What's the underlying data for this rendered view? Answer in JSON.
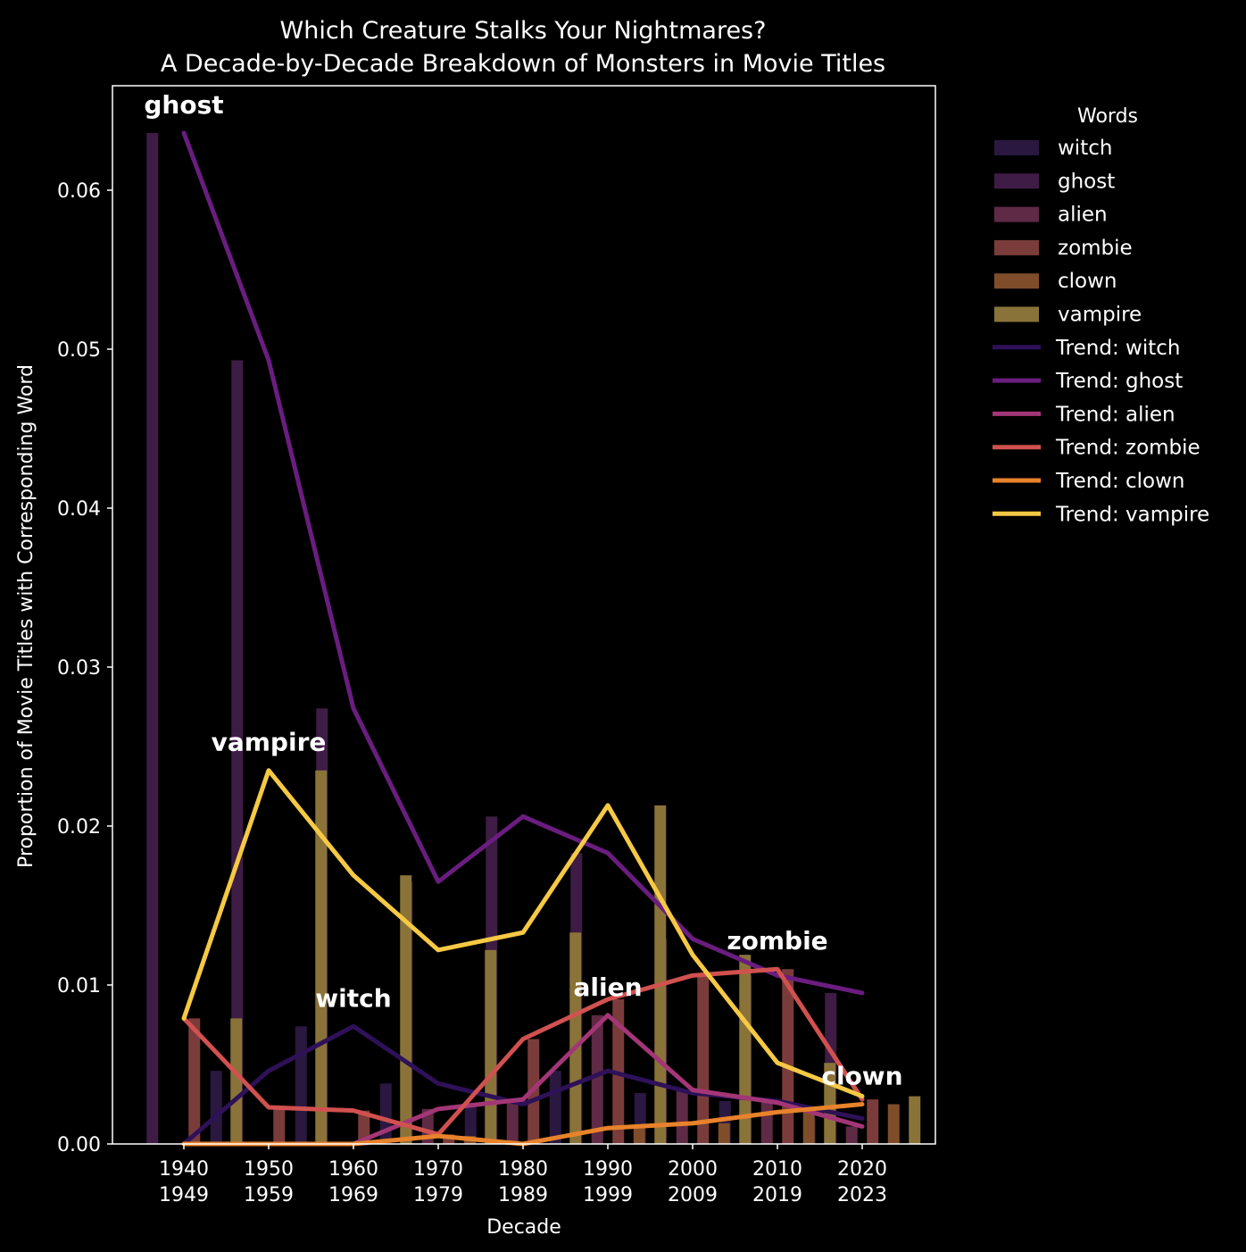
{
  "chart_data": {
    "type": "bar",
    "title": "Which Creature Stalks Your Nightmares?",
    "subtitle": "A Decade-by-Decade Breakdown of Monsters in Movie Titles",
    "xlabel": "Decade",
    "ylabel": "Proportion of Movie Titles with Corresponding Word",
    "ylim": [
      0,
      0.066
    ],
    "yticks": [
      "0.00",
      "0.01",
      "0.02",
      "0.03",
      "0.04",
      "0.05",
      "0.06"
    ],
    "categories": [
      [
        "1940",
        "1949"
      ],
      [
        "1950",
        "1959"
      ],
      [
        "1960",
        "1969"
      ],
      [
        "1970",
        "1979"
      ],
      [
        "1980",
        "1989"
      ],
      [
        "1990",
        "1999"
      ],
      [
        "2000",
        "2009"
      ],
      [
        "2010",
        "2019"
      ],
      [
        "2020",
        "2023"
      ]
    ],
    "legend_title": "Words",
    "legend_position": "outside right",
    "series": [
      {
        "name": "witch",
        "trend_name": "Trend: witch",
        "bar_color": "#2a1840",
        "line_color": "#2e1158",
        "label": "witch",
        "label_index": 2,
        "values": [
          0.0,
          0.0046,
          0.0074,
          0.0038,
          0.0025,
          0.0046,
          0.0032,
          0.0027,
          0.0016
        ]
      },
      {
        "name": "ghost",
        "trend_name": "Trend: ghost",
        "bar_color": "#3e1c45",
        "line_color": "#6a1d7f",
        "label": "ghost",
        "label_index": 0,
        "values": [
          0.0636,
          0.0493,
          0.0274,
          0.0165,
          0.0206,
          0.0183,
          0.0129,
          0.0106,
          0.0095
        ]
      },
      {
        "name": "alien",
        "trend_name": "Trend: alien",
        "bar_color": "#5e2a45",
        "line_color": "#a33676",
        "label": "alien",
        "label_index": 5,
        "values": [
          0.0,
          0.0,
          0.0,
          0.0022,
          0.0028,
          0.0081,
          0.0034,
          0.0026,
          0.0011
        ]
      },
      {
        "name": "zombie",
        "trend_name": "Trend: zombie",
        "bar_color": "#7a3c3a",
        "line_color": "#d0514f",
        "label": "zombie",
        "label_index": 7,
        "values": [
          0.0079,
          0.0023,
          0.0021,
          0.0006,
          0.0066,
          0.0091,
          0.0106,
          0.011,
          0.0028
        ]
      },
      {
        "name": "clown",
        "trend_name": "Trend: clown",
        "bar_color": "#7f4d2a",
        "line_color": "#e8822b",
        "label": "clown",
        "label_index": 8,
        "values": [
          0.0,
          0.0,
          0.0,
          0.0005,
          0.0,
          0.001,
          0.0013,
          0.002,
          0.0025
        ]
      },
      {
        "name": "vampire",
        "trend_name": "Trend: vampire",
        "bar_color": "#8a7339",
        "line_color": "#f6c944",
        "label": "vampire",
        "label_index": 1,
        "values": [
          0.0079,
          0.0235,
          0.0169,
          0.0122,
          0.0133,
          0.0213,
          0.0119,
          0.0051,
          0.003
        ]
      }
    ]
  }
}
